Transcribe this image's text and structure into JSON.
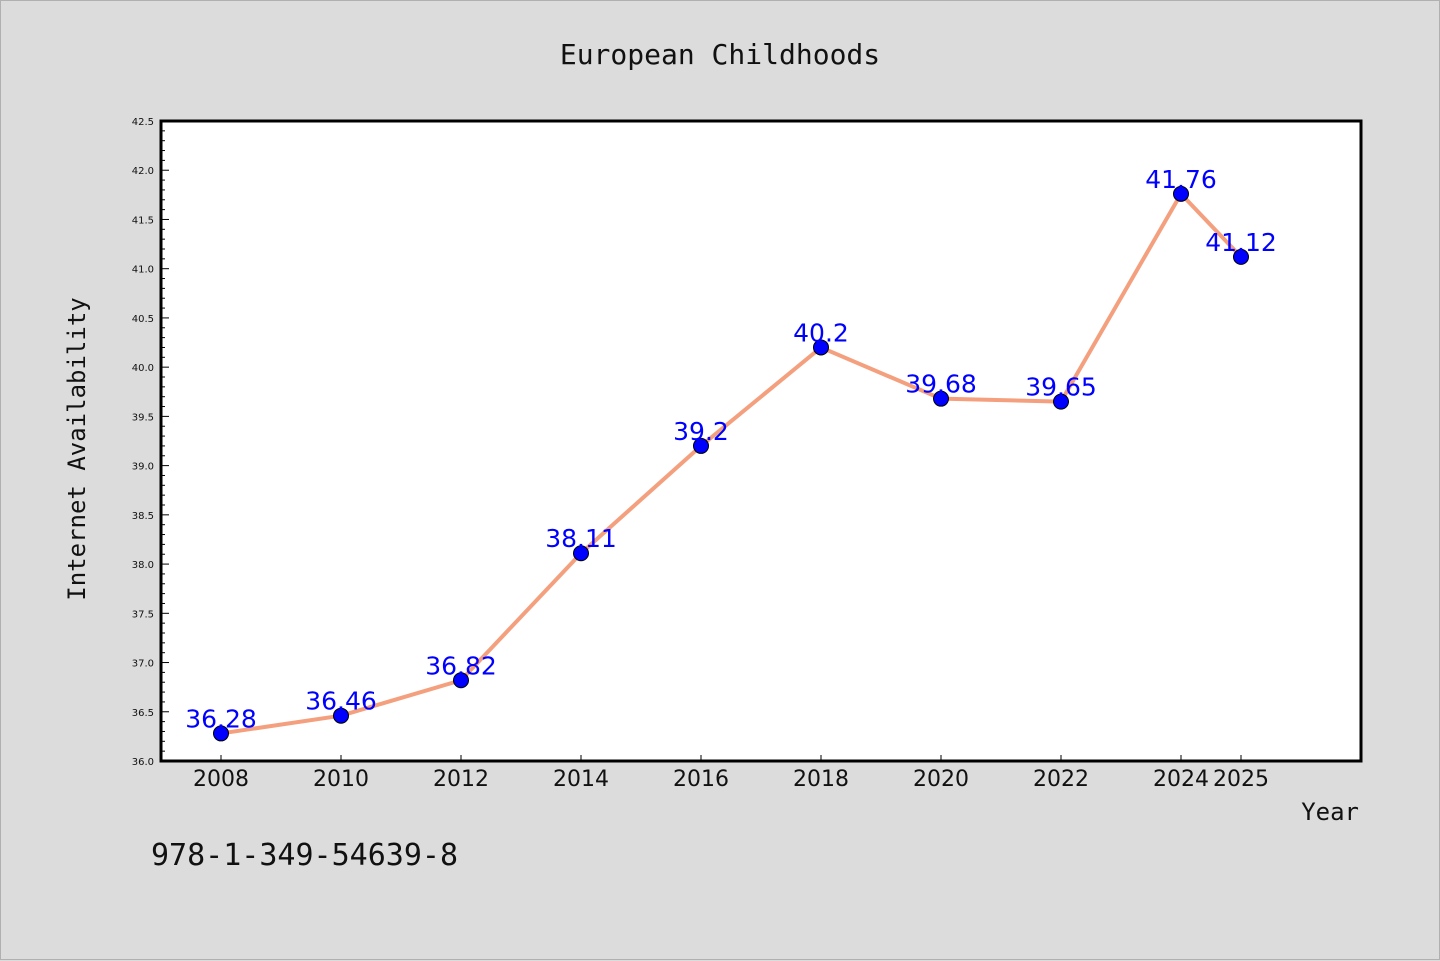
{
  "footer_text": "978-1-349-54639-8",
  "chart_data": {
    "type": "line",
    "title": "European Childhoods",
    "xlabel": "Year",
    "ylabel": "Internet Availability",
    "x": [
      "2008",
      "2010",
      "2012",
      "2014",
      "2016",
      "2018",
      "2020",
      "2022",
      "2024",
      "2025"
    ],
    "y": [
      36.28,
      36.46,
      36.82,
      38.11,
      39.2,
      40.2,
      39.68,
      39.65,
      41.76,
      41.12
    ],
    "data_labels": [
      "36.28",
      "36.46",
      "36.82",
      "38.11",
      "39.2",
      "40.2",
      "39.68",
      "39.65",
      "41.76",
      "41.12"
    ],
    "ylim": [
      36.0,
      42.5
    ],
    "yticks": [
      "36.0",
      "36.5",
      "37.0",
      "37.5",
      "38.0",
      "38.5",
      "39.0",
      "39.5",
      "40.0",
      "40.5",
      "41.0",
      "41.5",
      "42.0",
      "42.5"
    ],
    "grid": false,
    "legend": "none",
    "colors": {
      "line": "#f4a07e",
      "marker": "#0000ff",
      "label": "#0000ff",
      "background": "#dcdcdc",
      "plot_background": "#ffffff"
    }
  }
}
